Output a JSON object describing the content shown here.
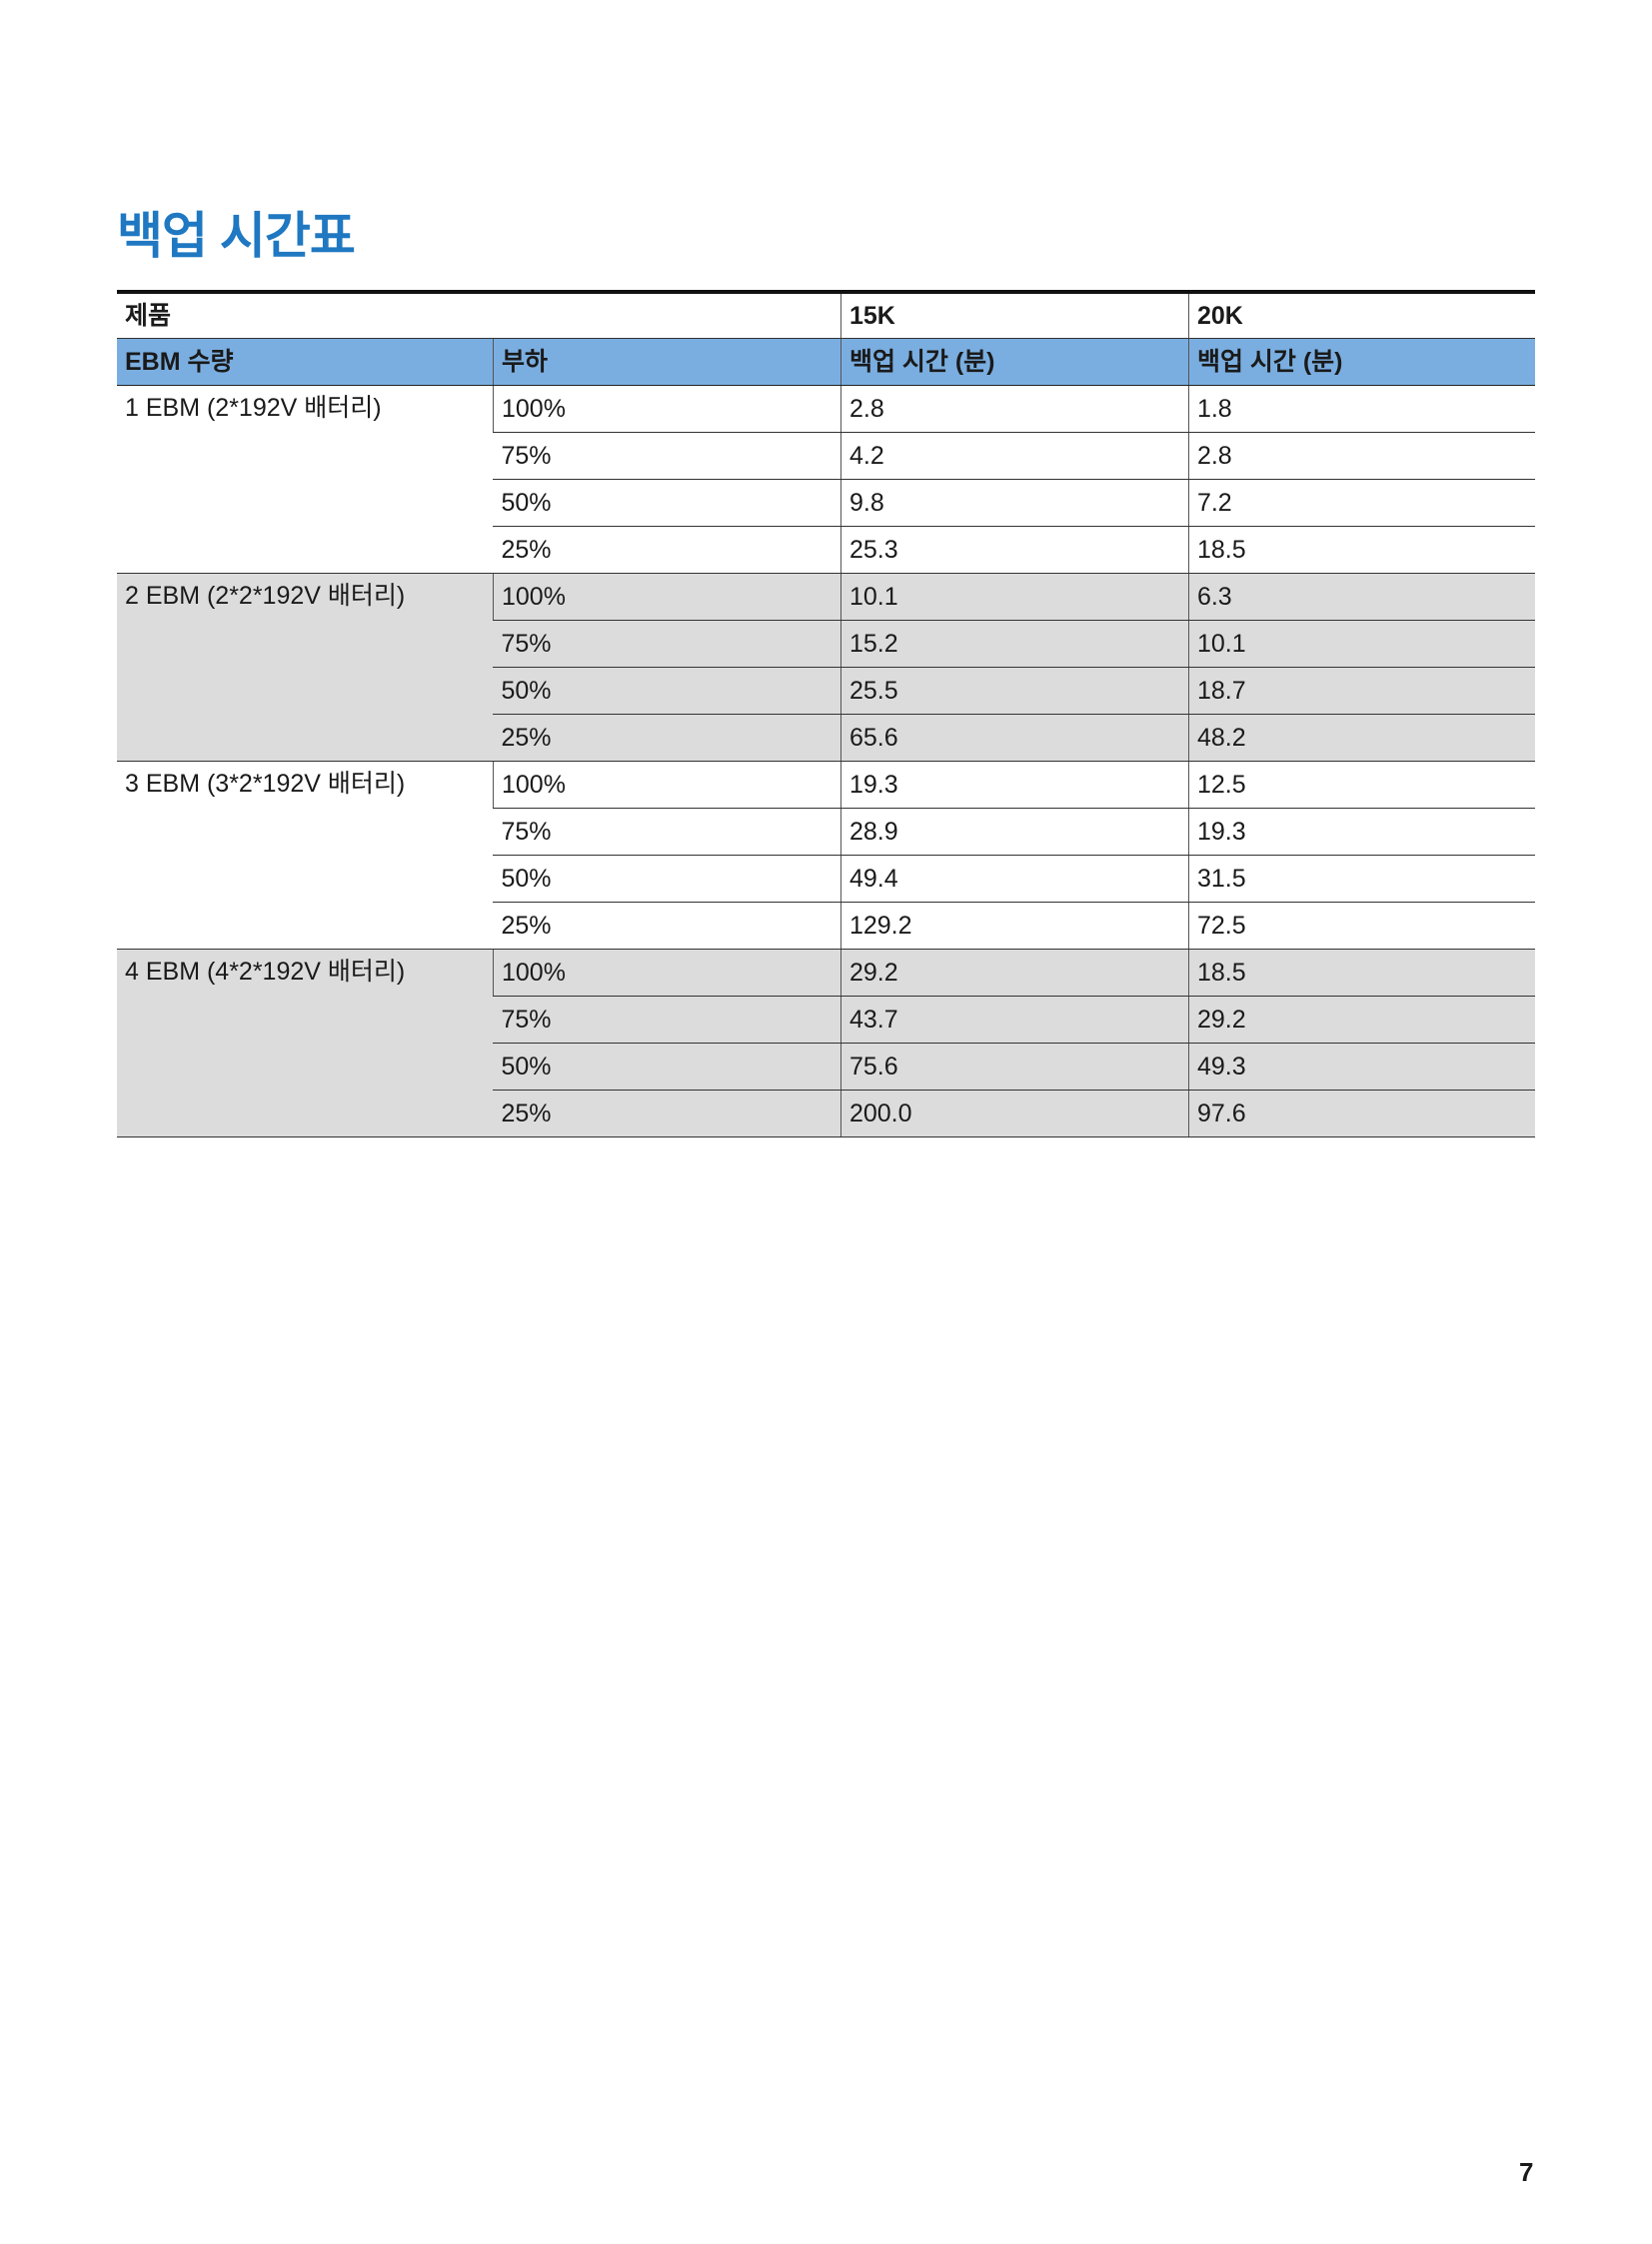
{
  "title": "백업 시간표",
  "table": {
    "product_label": "제품",
    "models": [
      "15K",
      "20K"
    ],
    "headers": {
      "ebm_count": "EBM 수량",
      "load": "부하",
      "backup_15k": "백업 시간 (분)",
      "backup_20k": "백업 시간 (분)"
    },
    "groups": [
      {
        "label": "1 EBM (2*192V 배터리)",
        "rows": [
          {
            "load": "100%",
            "v15k": "2.8",
            "v20k": "1.8"
          },
          {
            "load": "75%",
            "v15k": "4.2",
            "v20k": "2.8"
          },
          {
            "load": "50%",
            "v15k": "9.8",
            "v20k": "7.2"
          },
          {
            "load": "25%",
            "v15k": "25.3",
            "v20k": "18.5"
          }
        ]
      },
      {
        "label": "2 EBM (2*2*192V 배터리)",
        "rows": [
          {
            "load": "100%",
            "v15k": "10.1",
            "v20k": "6.3"
          },
          {
            "load": "75%",
            "v15k": "15.2",
            "v20k": "10.1"
          },
          {
            "load": "50%",
            "v15k": "25.5",
            "v20k": "18.7"
          },
          {
            "load": "25%",
            "v15k": "65.6",
            "v20k": "48.2"
          }
        ]
      },
      {
        "label": "3 EBM (3*2*192V 배터리)",
        "rows": [
          {
            "load": "100%",
            "v15k": "19.3",
            "v20k": "12.5"
          },
          {
            "load": "75%",
            "v15k": "28.9",
            "v20k": "19.3"
          },
          {
            "load": "50%",
            "v15k": "49.4",
            "v20k": "31.5"
          },
          {
            "load": "25%",
            "v15k": "129.2",
            "v20k": "72.5"
          }
        ]
      },
      {
        "label": "4 EBM (4*2*192V 배터리)",
        "rows": [
          {
            "load": "100%",
            "v15k": "29.2",
            "v20k": "18.5"
          },
          {
            "load": "75%",
            "v15k": "43.7",
            "v20k": "29.2"
          },
          {
            "load": "50%",
            "v15k": "75.6",
            "v20k": "49.3"
          },
          {
            "load": "25%",
            "v15k": "200.0",
            "v20k": "97.6"
          }
        ]
      }
    ]
  },
  "colors": {
    "title": "#1f78c1",
    "header_bg": "#7aaee0",
    "shaded_row_bg": "#dcdcdc"
  },
  "page_number": "7"
}
